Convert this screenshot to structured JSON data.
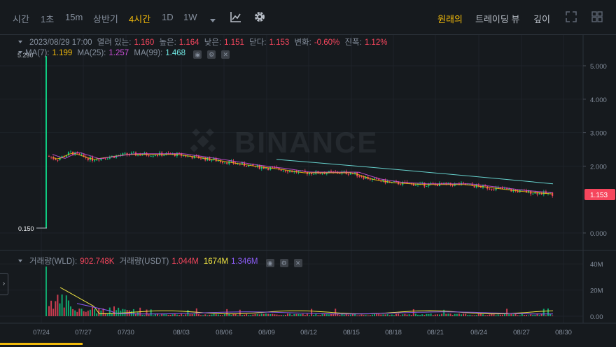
{
  "toolbar": {
    "intervals": [
      "시간",
      "1초",
      "15m",
      "상반기",
      "4시간",
      "1D",
      "1W"
    ],
    "active_interval": "4시간",
    "views": [
      "원래의",
      "트레이딩 뷰",
      "깊이"
    ],
    "active_view": "원래의"
  },
  "info_line": {
    "date": "2023/08/29 17:00",
    "open_label": "열려 있는:",
    "open": "1.160",
    "high_label": "높은:",
    "high": "1.164",
    "low_label": "낮은:",
    "low": "1.151",
    "close_label": "닫다:",
    "close": "1.153",
    "change_label": "변화:",
    "change": "-0.60%",
    "amplitude_label": "진폭:",
    "amplitude": "1.12%"
  },
  "ma_line": {
    "ma7_label": "MA(7):",
    "ma7": "1.199",
    "ma25_label": "MA(25):",
    "ma25": "1.257",
    "ma99_label": "MA(99):",
    "ma99": "1.468"
  },
  "volume_line": {
    "vol_wld_label": "거래량(WLD):",
    "vol_wld": "902.748K",
    "vol_usdt_label": "거래량(USDT)",
    "vol_usdt": "1.044M",
    "ma_a": "1674M",
    "ma_b": "1.346M"
  },
  "watermark": "BINANCE",
  "price_axis": [
    "5.000",
    "4.000",
    "3.000",
    "2.000",
    "0.000"
  ],
  "current_price_tag": "1.153",
  "high_marker": "5.290",
  "low_marker": "0.150",
  "volume_axis": [
    "40M",
    "20M",
    "0.00"
  ],
  "time_axis": [
    "07/24",
    "07/27",
    "07/30",
    "08/03",
    "08/06",
    "08/09",
    "08/12",
    "08/15",
    "08/18",
    "08/21",
    "08/24",
    "08/27",
    "08/30"
  ],
  "colors": {
    "up": "#0ecb81",
    "down": "#f6465d",
    "accent": "#f0b90b",
    "ma7": "#f0b90b",
    "ma25": "#c94fd6",
    "ma99": "#6fe5e0"
  }
}
